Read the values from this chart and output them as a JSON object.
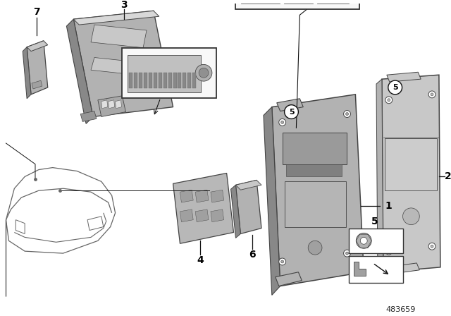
{
  "bg_color": "#ffffff",
  "fig_id": "483659",
  "gray_light": "#c8c8c8",
  "gray_mid": "#b2b2b2",
  "gray_dark": "#888888",
  "gray_lighter": "#d8d8d8",
  "outline_color": "#444444",
  "line_color": "#111111",
  "car_color": "#666666"
}
